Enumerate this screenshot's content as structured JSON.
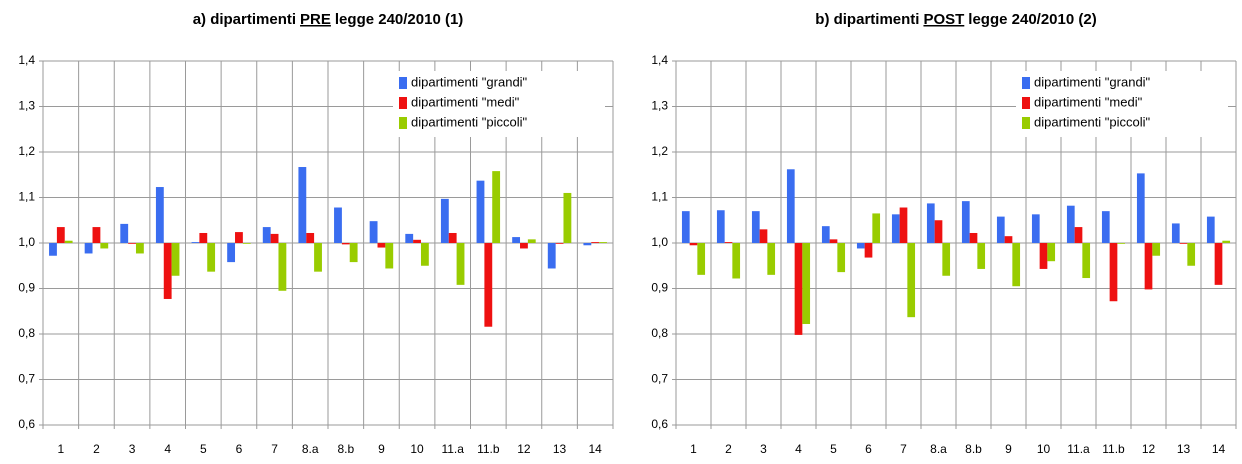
{
  "chart_data": [
    {
      "type": "bar",
      "title": {
        "prefix": "a) dipartimenti",
        "emphasis": "PRE",
        "suffix": "legge 240/2010 (1)"
      },
      "categories": [
        "1",
        "2",
        "3",
        "4",
        "5",
        "6",
        "7",
        "8.a",
        "8.b",
        "9",
        "10",
        "11.a",
        "11.b",
        "12",
        "13",
        "14"
      ],
      "baseline": 1,
      "series": [
        {
          "name": "dipartimenti \"grandi\"",
          "color": "#3a6df0",
          "values": [
            0.972,
            0.977,
            1.042,
            1.123,
            1.002,
            0.958,
            1.035,
            1.167,
            1.078,
            1.048,
            1.02,
            1.097,
            1.137,
            1.013,
            0.944,
            0.995
          ]
        },
        {
          "name": "dipartimenti \"medi\"",
          "color": "#ee1111",
          "values": [
            1.035,
            1.035,
            1.0,
            0.877,
            1.022,
            1.024,
            1.02,
            1.022,
            0.997,
            0.99,
            1.007,
            1.022,
            0.816,
            0.988,
            1.0,
            1.002
          ]
        },
        {
          "name": "dipartimenti \"piccoli\"",
          "color": "#99cc00",
          "values": [
            1.005,
            0.988,
            0.977,
            0.928,
            0.937,
            1.0,
            0.895,
            0.937,
            0.958,
            0.944,
            0.95,
            0.908,
            1.158,
            1.008,
            1.11,
            1.002
          ]
        }
      ],
      "ylim": [
        0.6,
        1.4
      ],
      "yticks": [
        {
          "value": 0.6,
          "label": "0,6"
        },
        {
          "value": 0.7,
          "label": "0,7"
        },
        {
          "value": 0.8,
          "label": "0,8"
        },
        {
          "value": 0.9,
          "label": "0,9"
        },
        {
          "value": 1.0,
          "label": "1,0"
        },
        {
          "value": 1.1,
          "label": "1,1"
        },
        {
          "value": 1.2,
          "label": "1,2"
        },
        {
          "value": 1.3,
          "label": "1,3"
        },
        {
          "value": 1.4,
          "label": "1,4"
        }
      ],
      "grid": true,
      "legend": "top-right"
    },
    {
      "type": "bar",
      "title": {
        "prefix": "b) dipartimenti",
        "emphasis": "POST",
        "suffix": "legge 240/2010 (2)"
      },
      "categories": [
        "1",
        "2",
        "3",
        "4",
        "5",
        "6",
        "7",
        "8.a",
        "8.b",
        "9",
        "10",
        "11.a",
        "11.b",
        "12",
        "13",
        "14"
      ],
      "baseline": 1,
      "series": [
        {
          "name": "dipartimenti \"grandi\"",
          "color": "#3a6df0",
          "values": [
            1.07,
            1.072,
            1.07,
            1.162,
            1.037,
            0.988,
            1.063,
            1.087,
            1.092,
            1.058,
            1.063,
            1.082,
            1.07,
            1.153,
            1.043,
            1.058
          ]
        },
        {
          "name": "dipartimenti \"medi\"",
          "color": "#ee1111",
          "values": [
            0.995,
            1.002,
            1.03,
            0.798,
            1.008,
            0.968,
            1.078,
            1.05,
            1.022,
            1.015,
            0.943,
            1.035,
            0.872,
            0.898,
            1.0,
            0.908
          ]
        },
        {
          "name": "dipartimenti \"piccoli\"",
          "color": "#99cc00",
          "values": [
            0.93,
            0.922,
            0.93,
            0.822,
            0.936,
            1.065,
            0.837,
            0.928,
            0.943,
            0.905,
            0.96,
            0.923,
            1.0,
            0.972,
            0.95,
            1.005
          ]
        }
      ],
      "ylim": [
        0.6,
        1.4
      ],
      "yticks": [
        {
          "value": 0.6,
          "label": "0,6"
        },
        {
          "value": 0.7,
          "label": "0,7"
        },
        {
          "value": 0.8,
          "label": "0,8"
        },
        {
          "value": 0.9,
          "label": "0,9"
        },
        {
          "value": 1.0,
          "label": "1,0"
        },
        {
          "value": 1.1,
          "label": "1,1"
        },
        {
          "value": 1.2,
          "label": "1,2"
        },
        {
          "value": 1.3,
          "label": "1,3"
        },
        {
          "value": 1.4,
          "label": "1,4"
        }
      ],
      "grid": true,
      "legend": "top-right"
    }
  ]
}
